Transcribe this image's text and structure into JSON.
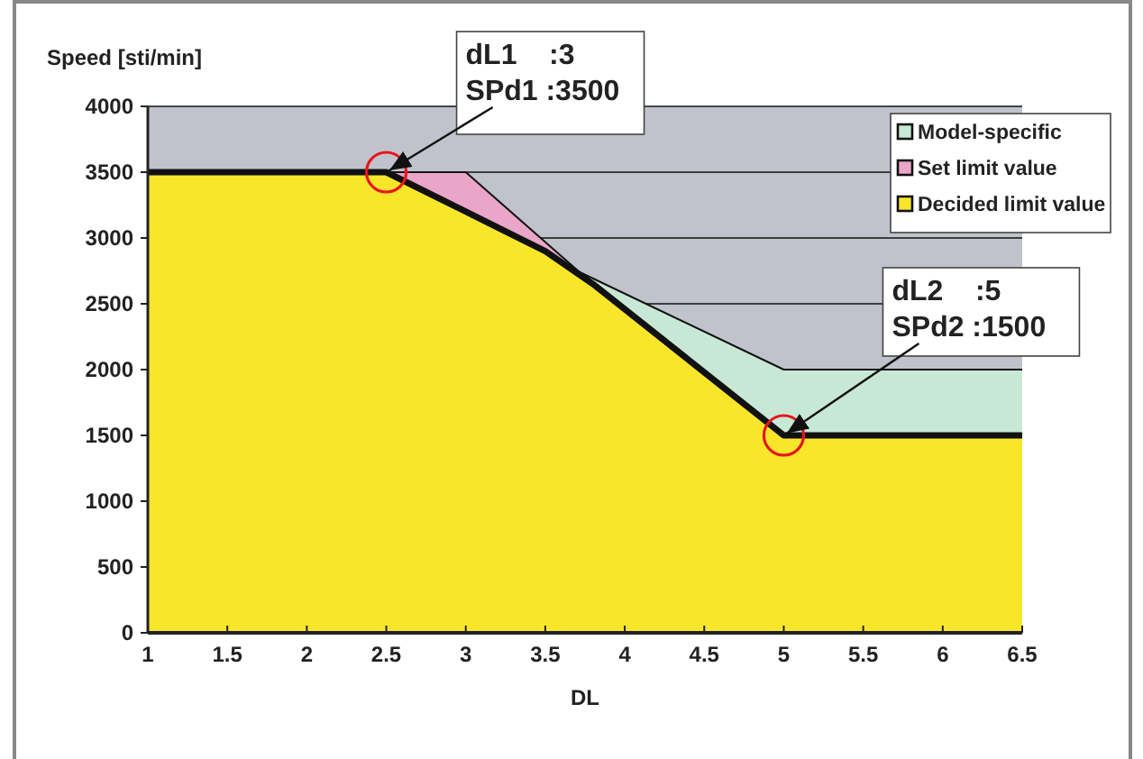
{
  "chart_data": {
    "type": "area",
    "xlabel": "DL",
    "ylabel": "Speed [sti/min]",
    "xlim": [
      1,
      6.5
    ],
    "xticks": [
      1,
      1.5,
      2,
      2.5,
      3,
      3.5,
      4,
      4.5,
      5,
      5.5,
      6,
      6.5
    ],
    "ylim": [
      0,
      4000
    ],
    "yticks": [
      0,
      500,
      1000,
      1500,
      2000,
      2500,
      3000,
      3500,
      4000
    ],
    "grid": "y",
    "legend": "top right",
    "series": [
      {
        "name": "Model-specific",
        "color": "#c8e8d6",
        "x": [
          3.7,
          5,
          6.5
        ],
        "values": [
          2750,
          2000,
          2000
        ]
      },
      {
        "name": "Set limit value",
        "color": "#eaa6c8",
        "x": [
          1,
          3,
          3.8
        ],
        "values": [
          3500,
          3500,
          2650
        ]
      },
      {
        "name": "Decided limit value",
        "color": "#f9e62b",
        "x": [
          1,
          2.5,
          3.5,
          3.8,
          5,
          6.5
        ],
        "values": [
          3500,
          3500,
          2900,
          2650,
          1500,
          1500
        ]
      }
    ],
    "annotations": [
      {
        "text": "dL1    :3\nSPd1 :3500",
        "x": 2.5,
        "y": 3500
      },
      {
        "text": "dL2    :5\nSPd2 :1500",
        "x": 5,
        "y": 1500
      }
    ]
  }
}
